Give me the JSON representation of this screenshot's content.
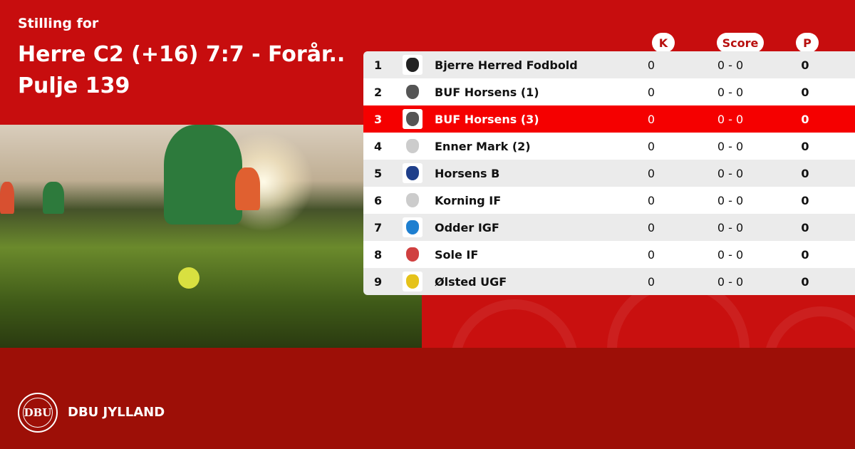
{
  "header": {
    "subtitle": "Stilling for",
    "title": "Herre C2 (+16) 7:7 - Forår.. Pulje 139"
  },
  "columns": {
    "k": "K",
    "score": "Score",
    "p": "P"
  },
  "rows": [
    {
      "pos": "1",
      "team": "Bjerre Herred Fodbold",
      "k": "0",
      "score": "0 - 0",
      "p": "0",
      "logo_color": "#222222"
    },
    {
      "pos": "2",
      "team": "BUF Horsens (1)",
      "k": "0",
      "score": "0 - 0",
      "p": "0",
      "logo_color": "#555555"
    },
    {
      "pos": "3",
      "team": "BUF Horsens (3)",
      "k": "0",
      "score": "0 - 0",
      "p": "0",
      "logo_color": "#555555",
      "highlighted": true
    },
    {
      "pos": "4",
      "team": "Enner Mark (2)",
      "k": "0",
      "score": "0 - 0",
      "p": "0",
      "logo_color": "#cccccc"
    },
    {
      "pos": "5",
      "team": "Horsens B",
      "k": "0",
      "score": "0 - 0",
      "p": "0",
      "logo_color": "#1f3f8a"
    },
    {
      "pos": "6",
      "team": "Korning IF",
      "k": "0",
      "score": "0 - 0",
      "p": "0",
      "logo_color": "#cccccc"
    },
    {
      "pos": "7",
      "team": "Odder IGF",
      "k": "0",
      "score": "0 - 0",
      "p": "0",
      "logo_color": "#1e7fd0"
    },
    {
      "pos": "8",
      "team": "Sole IF",
      "k": "0",
      "score": "0 - 0",
      "p": "0",
      "logo_color": "#d04040"
    },
    {
      "pos": "9",
      "team": "Ølsted UGF",
      "k": "0",
      "score": "0 - 0",
      "p": "0",
      "logo_color": "#e5c21a"
    }
  ],
  "footer": {
    "brand": "DBU JYLLAND",
    "logo_text": "DBU"
  },
  "colors": {
    "primary": "#c70d0e",
    "footer": "#9d0f07",
    "highlight": "#f50000"
  }
}
